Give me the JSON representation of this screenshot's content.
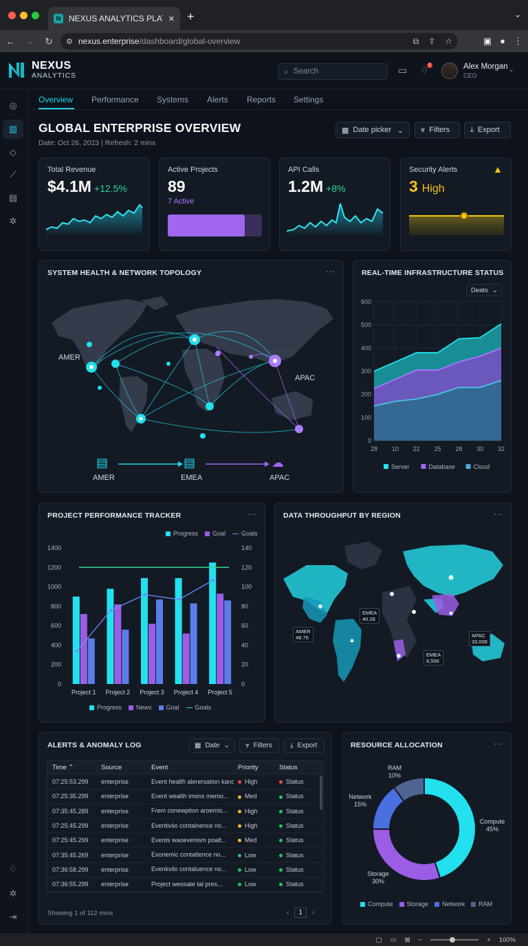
{
  "browser": {
    "tab_title": "NEXUS ANALYTICS PLATFORM",
    "url_host": "nexus.enterprise",
    "url_path": "/dashboard/global-overview",
    "zoom": "100%"
  },
  "brand": {
    "name": "NEXUS",
    "sub": "ANALYTICS"
  },
  "search": {
    "placeholder": "Search"
  },
  "notifications": {
    "count": "1"
  },
  "user": {
    "name": "Alex Morgan",
    "role": "CEO"
  },
  "nav_tabs": [
    "Overview",
    "Performance",
    "Systems",
    "Alerts",
    "Reports",
    "Settings"
  ],
  "page": {
    "title": "GLOBAL ENTERPRISE OVERVIEW",
    "subtitle": "Date: Oct 26, 2023 | Refresh: 2 mins",
    "date_picker": "Date picker",
    "filters": "Filters",
    "export": "Export"
  },
  "kpis": {
    "revenue": {
      "label": "Total Revenue",
      "value": "$4.1M",
      "delta": "+12.5%"
    },
    "projects": {
      "label": "Active Projects",
      "value": "89",
      "sub": "7 Active",
      "progress": 0.82
    },
    "api": {
      "label": "API Calls",
      "value": "1.2M",
      "delta": "+8%"
    },
    "security": {
      "label": "Security Alerts",
      "value": "3",
      "level": "High"
    }
  },
  "topology": {
    "title": "SYSTEM HEALTH & NETWORK TOPOLOGY",
    "regions": [
      "AMER",
      "APAC"
    ],
    "flow": [
      "AMER",
      "EMEA",
      "APAC"
    ]
  },
  "infra": {
    "title": "REAL-TIME INFRASTRUCTURE STATUS",
    "dropdown": "Deats",
    "chart_data": {
      "type": "area",
      "x": [
        "28",
        "10",
        "22",
        "25",
        "28",
        "30",
        "32"
      ],
      "ylim": [
        0,
        600
      ],
      "yticks": [
        "600",
        "500",
        "400",
        "300",
        "200",
        "100",
        "0"
      ],
      "series": [
        {
          "name": "Server",
          "values": [
            300,
            340,
            380,
            380,
            440,
            445,
            505
          ]
        },
        {
          "name": "Database",
          "values": [
            225,
            265,
            305,
            305,
            340,
            365,
            400
          ]
        },
        {
          "name": "Cloud",
          "values": [
            150,
            170,
            180,
            200,
            230,
            230,
            260
          ]
        }
      ],
      "legend": "bottom"
    }
  },
  "tracker": {
    "title": "PROJECT PERFORMANCE TRACKER",
    "legend_top": [
      "Progress",
      "Goal",
      "Goals"
    ],
    "legend_bottom": [
      "Progress",
      "News",
      "Goal",
      "Goals"
    ],
    "chart_data": {
      "type": "bar",
      "categories": [
        "Project 1",
        "Project 2",
        "Project 3",
        "Project 4",
        "Project 5"
      ],
      "ylim": [
        0,
        1400
      ],
      "y2lim": [
        0,
        140
      ],
      "yticks": [
        "1400",
        "1200",
        "1000",
        "800",
        "600",
        "400",
        "200",
        "0"
      ],
      "y2ticks": [
        "140",
        "120",
        "100",
        "80",
        "60",
        "40",
        "20",
        "0"
      ],
      "series": [
        {
          "name": "Progress",
          "values": [
            900,
            980,
            1090,
            1090,
            1250
          ]
        },
        {
          "name": "News",
          "values": [
            720,
            820,
            620,
            520,
            930
          ]
        },
        {
          "name": "Goal",
          "values": [
            470,
            560,
            870,
            830,
            860
          ]
        }
      ],
      "goal_line": 1200,
      "trend": [
        340,
        760,
        920,
        870,
        1070
      ]
    }
  },
  "throughput": {
    "title": "DATA THROUGHPUT BY REGION",
    "labels": [
      {
        "name": "AMER",
        "value": "48.75"
      },
      {
        "name": "EMEA",
        "value": "40.28"
      },
      {
        "name": "APAC",
        "value": "33,008"
      },
      {
        "name": "EMEA",
        "value": "8,556"
      }
    ]
  },
  "alerts": {
    "title": "ALERTS & ANOMALY LOG",
    "date_btn": "Date",
    "filters_btn": "Filters",
    "export_btn": "Export",
    "columns": [
      "Time",
      "Source",
      "Event",
      "Priority",
      "Status"
    ],
    "rows": [
      {
        "time": "07:25:53.299",
        "source": "enterprise",
        "event": "Event health alerersation kanding",
        "priority": "High",
        "status": "Status",
        "pcolor": "#ef4444",
        "scolor": "#ef4444"
      },
      {
        "time": "07:25:35.299",
        "source": "enterprise",
        "event": "Event wealth imsnx memo...",
        "priority": "Med",
        "status": "Status",
        "pcolor": "#f5b82e",
        "scolor": "#22c55e"
      },
      {
        "time": "07:35:45.289",
        "source": "enterprise",
        "event": "Frem conewption aroemis...",
        "priority": "High",
        "status": "Status",
        "pcolor": "#f5b82e",
        "scolor": "#22c55e"
      },
      {
        "time": "07:25:45.299",
        "source": "enterprise",
        "event": "Eventiviio contalnence no...",
        "priority": "High",
        "status": "Status",
        "pcolor": "#f5b82e",
        "scolor": "#22c55e"
      },
      {
        "time": "07:25:45.299",
        "source": "enterprise",
        "event": "Events waoevenism poalt...",
        "priority": "Med",
        "status": "Status",
        "pcolor": "#f5b82e",
        "scolor": "#22c55e"
      },
      {
        "time": "07:35:45.269",
        "source": "enterprise",
        "event": "Exonemic contaltence no...",
        "priority": "Low",
        "status": "Status",
        "pcolor": "#22c55e",
        "scolor": "#22c55e"
      },
      {
        "time": "07:36:58.299",
        "source": "enterprise",
        "event": "Evenkvilo contaluence no...",
        "priority": "Low",
        "status": "Status",
        "pcolor": "#22c55e",
        "scolor": "#22c55e"
      },
      {
        "time": "07:36:55.299",
        "source": "enterprise",
        "event": "Project weosate tal pres...",
        "priority": "Low",
        "status": "Status",
        "pcolor": "#22c55e",
        "scolor": "#22c55e"
      }
    ],
    "footer": "Showing 1 of 112 mins",
    "page": "1"
  },
  "resources": {
    "title": "RESOURCE ALLOCATION",
    "chart_data": {
      "type": "pie",
      "slices": [
        {
          "name": "Compute",
          "value": 45,
          "label": "Compute\n45%",
          "color": "#22e0ee"
        },
        {
          "name": "Storage",
          "value": 30,
          "label": "Storage\n30%",
          "color": "#9b5de5"
        },
        {
          "name": "Network",
          "value": 15,
          "label": "Network\n15%",
          "color": "#4a6fe0"
        },
        {
          "name": "RAM",
          "value": 10,
          "label": "RAM\n10%",
          "color": "#4f6591"
        }
      ],
      "legend": "bottom"
    }
  },
  "colors": {
    "accent": "#22d3ee",
    "purple": "#9b5de5",
    "warning": "#f5c518"
  }
}
